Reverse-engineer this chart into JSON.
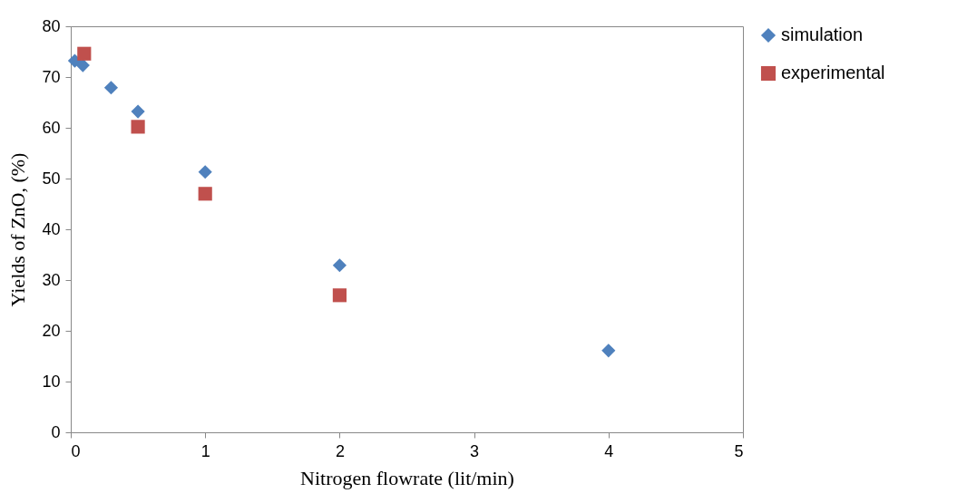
{
  "chart_data": {
    "type": "scatter",
    "xlabel": "Nitrogen flowrate (lit/min)",
    "ylabel": "Yields of ZnO, (%)",
    "xlim": [
      0,
      5
    ],
    "xticks": [
      0,
      1,
      2,
      3,
      4,
      5
    ],
    "ylim": [
      0,
      80
    ],
    "yticks": [
      0,
      10,
      20,
      30,
      40,
      50,
      60,
      70,
      80
    ],
    "grid": false,
    "legend": "right",
    "series": [
      {
        "name": "simulation",
        "color": "#4f81bd",
        "marker": "diamond",
        "x": [
          0.03,
          0.09,
          0.3,
          0.5,
          1,
          2,
          4
        ],
        "values": [
          73.2,
          72.3,
          67.9,
          63.2,
          51.3,
          32.9,
          16.1
        ]
      },
      {
        "name": "experimental",
        "color": "#c0504d",
        "marker": "square",
        "x": [
          0.1,
          0.5,
          1,
          2
        ],
        "values": [
          74.6,
          60.2,
          47,
          27
        ]
      }
    ]
  }
}
